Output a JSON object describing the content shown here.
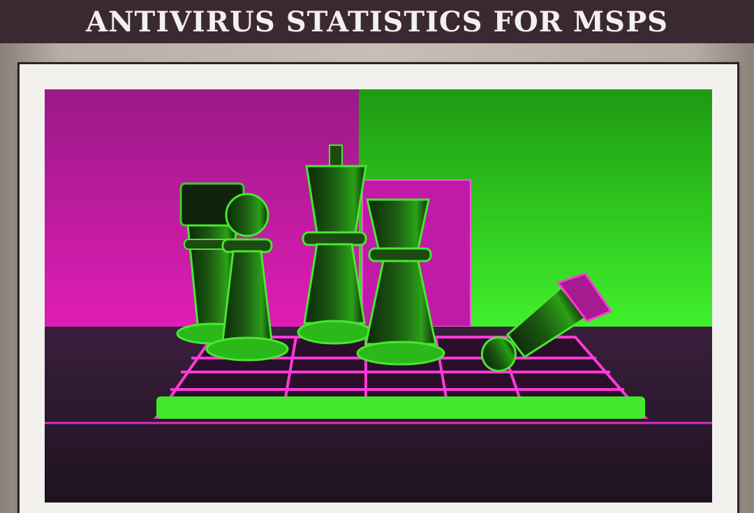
{
  "banner": {
    "title": "ANTIVIRUS STATISTICS FOR MSPS"
  },
  "artwork": {
    "subject": "chess-pieces-on-board-icon",
    "colors": {
      "magenta": "#d21ab0",
      "green": "#3ee02a",
      "dark": "#2a1a2c"
    }
  }
}
